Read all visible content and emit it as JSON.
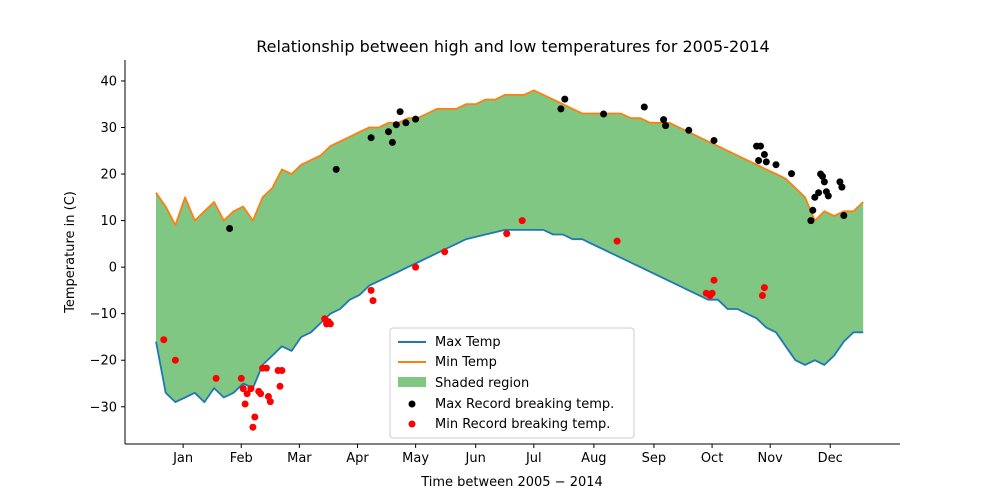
{
  "chart_data": {
    "type": "line",
    "title": "Relationship between high and low temperatures for 2005-2014",
    "xlabel": "Time between 2005 − 2014",
    "ylabel": "Temperature in (C)",
    "x_ticks": [
      "Jan",
      "Feb",
      "Mar",
      "Apr",
      "May",
      "Jun",
      "Jul",
      "Aug",
      "Sep",
      "Oct",
      "Nov",
      "Dec"
    ],
    "x_tick_days": [
      15,
      45,
      75,
      105,
      135,
      166,
      196,
      227,
      258,
      288,
      318,
      349
    ],
    "xlim": [
      -15,
      385
    ],
    "y_ticks": [
      -30,
      -20,
      -10,
      0,
      10,
      20,
      30,
      40
    ],
    "ylim": [
      -38,
      44.5
    ],
    "grid": false,
    "legend_position": "lower-center",
    "legend": {
      "max_temp": "Max Temp",
      "min_temp": "Min Temp",
      "shaded": "Shaded region",
      "max_record": "Max Record breaking temp.",
      "min_record": "Min Record breaking temp."
    },
    "colors": {
      "max_line": "#1f77b4",
      "min_line": "#ff7f0e",
      "shade": "#4caf50",
      "max_record": "#000000",
      "min_record": "#ff0000"
    },
    "series": [
      {
        "name": "Max Temp",
        "x": [
          1,
          6,
          11,
          16,
          21,
          26,
          31,
          36,
          41,
          46,
          51,
          56,
          61,
          66,
          71,
          76,
          81,
          86,
          91,
          96,
          101,
          106,
          111,
          116,
          121,
          126,
          131,
          136,
          141,
          146,
          151,
          156,
          161,
          166,
          171,
          176,
          181,
          186,
          191,
          196,
          201,
          206,
          211,
          216,
          221,
          226,
          231,
          236,
          241,
          246,
          251,
          256,
          261,
          266,
          271,
          276,
          281,
          286,
          291,
          296,
          301,
          306,
          311,
          316,
          321,
          326,
          331,
          336,
          341,
          346,
          351,
          356,
          361,
          366
        ],
        "y": [
          -16,
          -27,
          -29,
          -28,
          -27,
          -29,
          -26,
          -28,
          -27,
          -25,
          -26,
          -21,
          -19,
          -17,
          -18,
          -15,
          -14,
          -12,
          -10,
          -9,
          -7,
          -6,
          -4,
          -3,
          -2,
          -1,
          0,
          1,
          2,
          3,
          4,
          5,
          6,
          6.5,
          7,
          7.5,
          8,
          8,
          8,
          8,
          8,
          7,
          7,
          6,
          6,
          5,
          4,
          3,
          2,
          1,
          0,
          -1,
          -2,
          -3,
          -4,
          -5,
          -6,
          -7,
          -7,
          -9,
          -9,
          -10,
          -11,
          -13,
          -14,
          -17,
          -20,
          -21,
          -20,
          -21,
          -19,
          -16,
          -14,
          -14
        ]
      },
      {
        "name": "Min Temp",
        "x": [
          1,
          6,
          11,
          16,
          21,
          26,
          31,
          36,
          41,
          46,
          51,
          56,
          61,
          66,
          71,
          76,
          81,
          86,
          91,
          96,
          101,
          106,
          111,
          116,
          121,
          126,
          131,
          136,
          141,
          146,
          151,
          156,
          161,
          166,
          171,
          176,
          181,
          186,
          191,
          196,
          201,
          206,
          211,
          216,
          221,
          226,
          231,
          236,
          241,
          246,
          251,
          256,
          261,
          266,
          271,
          276,
          281,
          286,
          291,
          296,
          301,
          306,
          311,
          316,
          321,
          326,
          331,
          336,
          341,
          346,
          351,
          356,
          361,
          366
        ],
        "y": [
          16,
          13,
          9,
          15,
          10,
          12,
          14,
          10,
          12,
          13,
          10,
          15,
          17,
          21,
          20,
          22,
          23,
          24,
          26,
          27,
          28,
          29,
          30,
          30,
          31,
          31,
          32,
          32,
          33,
          34,
          34,
          34,
          35,
          35,
          36,
          36,
          37,
          37,
          37,
          38,
          37,
          36,
          35,
          34,
          33,
          33,
          33,
          33,
          33,
          32,
          32,
          31,
          31,
          31,
          30,
          29,
          28,
          27,
          26,
          25,
          24,
          23,
          22,
          21,
          20,
          19,
          17,
          15,
          10,
          12,
          11,
          12,
          12,
          14
        ]
      }
    ],
    "max_records": [
      {
        "x": 39,
        "y": 8.3
      },
      {
        "x": 94,
        "y": 21
      },
      {
        "x": 112,
        "y": 27.8
      },
      {
        "x": 121,
        "y": 29.1
      },
      {
        "x": 123,
        "y": 26.8
      },
      {
        "x": 125,
        "y": 30.6
      },
      {
        "x": 127,
        "y": 33.4
      },
      {
        "x": 130,
        "y": 31
      },
      {
        "x": 135,
        "y": 31.8
      },
      {
        "x": 210,
        "y": 34
      },
      {
        "x": 212,
        "y": 36.1
      },
      {
        "x": 232,
        "y": 32.9
      },
      {
        "x": 253,
        "y": 34.4
      },
      {
        "x": 263,
        "y": 31.7
      },
      {
        "x": 264,
        "y": 30.4
      },
      {
        "x": 276,
        "y": 29.4
      },
      {
        "x": 289,
        "y": 27.2
      },
      {
        "x": 311,
        "y": 26
      },
      {
        "x": 312,
        "y": 22.9
      },
      {
        "x": 313,
        "y": 26
      },
      {
        "x": 315,
        "y": 24.2
      },
      {
        "x": 316,
        "y": 22.6
      },
      {
        "x": 321,
        "y": 22
      },
      {
        "x": 329,
        "y": 20.1
      },
      {
        "x": 339,
        "y": 10
      },
      {
        "x": 340,
        "y": 12.2
      },
      {
        "x": 341,
        "y": 15
      },
      {
        "x": 343,
        "y": 16
      },
      {
        "x": 344,
        "y": 20
      },
      {
        "x": 345,
        "y": 19.5
      },
      {
        "x": 346,
        "y": 18.3
      },
      {
        "x": 347,
        "y": 16.2
      },
      {
        "x": 348,
        "y": 15.3
      },
      {
        "x": 354,
        "y": 18.3
      },
      {
        "x": 355,
        "y": 17.2
      },
      {
        "x": 356,
        "y": 11.1
      }
    ],
    "min_records": [
      {
        "x": 5,
        "y": -15.6
      },
      {
        "x": 11,
        "y": -20
      },
      {
        "x": 32,
        "y": -23.9
      },
      {
        "x": 45,
        "y": -23.9
      },
      {
        "x": 46,
        "y": -26.1
      },
      {
        "x": 47,
        "y": -29.4
      },
      {
        "x": 48,
        "y": -27.2
      },
      {
        "x": 50,
        "y": -26.1
      },
      {
        "x": 51,
        "y": -34.4
      },
      {
        "x": 52,
        "y": -32.2
      },
      {
        "x": 54,
        "y": -26.7
      },
      {
        "x": 55,
        "y": -27.2
      },
      {
        "x": 56,
        "y": -21.7
      },
      {
        "x": 58,
        "y": -21.7
      },
      {
        "x": 59,
        "y": -27.8
      },
      {
        "x": 60,
        "y": -28.9
      },
      {
        "x": 64,
        "y": -22.2
      },
      {
        "x": 65,
        "y": -25.6
      },
      {
        "x": 66,
        "y": -22.2
      },
      {
        "x": 88,
        "y": -11.1
      },
      {
        "x": 89,
        "y": -12.2
      },
      {
        "x": 90,
        "y": -11.7
      },
      {
        "x": 91,
        "y": -12.2
      },
      {
        "x": 112,
        "y": -5
      },
      {
        "x": 113,
        "y": -7.2
      },
      {
        "x": 135,
        "y": 0
      },
      {
        "x": 150,
        "y": 3.3
      },
      {
        "x": 182,
        "y": 7.2
      },
      {
        "x": 190,
        "y": 10
      },
      {
        "x": 239,
        "y": 5.6
      },
      {
        "x": 285,
        "y": -5.6
      },
      {
        "x": 287,
        "y": -6.1
      },
      {
        "x": 288,
        "y": -5.6
      },
      {
        "x": 289,
        "y": -2.8
      },
      {
        "x": 314,
        "y": -6.1
      },
      {
        "x": 315,
        "y": -4.4
      }
    ]
  }
}
